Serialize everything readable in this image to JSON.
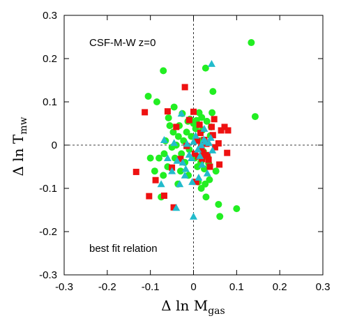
{
  "chart_data": {
    "type": "scatter",
    "title": "",
    "xlabel": {
      "main": "Δ ln M",
      "sub": "gas"
    },
    "ylabel": {
      "main": "Δ ln T",
      "sub": "mw"
    },
    "xlim": [
      -0.3,
      0.3
    ],
    "ylim": [
      -0.3,
      0.3
    ],
    "xticks": [
      "-0.3",
      "-0.2",
      "-0.1",
      "0",
      "0.1",
      "0.2",
      "0.3"
    ],
    "yticks": [
      "-0.3",
      "-0.2",
      "-0.1",
      "0",
      "0.1",
      "0.2",
      "0.3"
    ],
    "annotations": {
      "top_left": "CSF-M-W   z=0",
      "bottom_left": "best fit relation"
    },
    "reference_lines": {
      "x": 0,
      "y": 0,
      "style": "dashed"
    },
    "grid": false,
    "series": [
      {
        "marker": "circle",
        "color": "#22ee22",
        "points": [
          [
            0.134,
            0.237
          ],
          [
            0.143,
            0.066
          ],
          [
            0.1,
            -0.147
          ],
          [
            0.061,
            -0.165
          ],
          [
            0.058,
            -0.137
          ],
          [
            0.045,
            0.124
          ],
          [
            0.043,
            0.075
          ],
          [
            0.041,
            0.042
          ],
          [
            0.039,
            0.022
          ],
          [
            0.037,
            -0.08
          ],
          [
            0.035,
            -0.042
          ],
          [
            0.033,
            -0.028
          ],
          [
            0.031,
            0.055
          ],
          [
            0.029,
            -0.12
          ],
          [
            0.027,
            -0.09
          ],
          [
            0.025,
            -0.055
          ],
          [
            0.023,
            -0.015
          ],
          [
            0.021,
            0.035
          ],
          [
            0.019,
            0.064
          ],
          [
            0.017,
            -0.04
          ],
          [
            0.015,
            0.01
          ],
          [
            0.013,
            0.075
          ],
          [
            0.011,
            -0.085
          ],
          [
            0.009,
            -0.05
          ],
          [
            0.007,
            0.057
          ],
          [
            0.005,
            0.038
          ],
          [
            0.003,
            -0.03
          ],
          [
            0.0,
            0.05
          ],
          [
            -0.005,
            0.02
          ],
          [
            -0.01,
            -0.01
          ],
          [
            -0.013,
            0.055
          ],
          [
            -0.016,
            0.03
          ],
          [
            -0.02,
            -0.04
          ],
          [
            -0.023,
            0.01
          ],
          [
            -0.026,
            0.073
          ],
          [
            -0.028,
            -0.02
          ],
          [
            -0.03,
            -0.06
          ],
          [
            -0.033,
            0.045
          ],
          [
            -0.036,
            -0.09
          ],
          [
            -0.04,
            0.0
          ],
          [
            -0.043,
            -0.03
          ],
          [
            -0.047,
            0.03
          ],
          [
            -0.05,
            -0.005
          ],
          [
            -0.055,
            0.045
          ],
          [
            -0.06,
            -0.05
          ],
          [
            -0.065,
            0.01
          ],
          [
            -0.07,
            -0.07
          ],
          [
            -0.075,
            -0.12
          ],
          [
            -0.08,
            -0.03
          ],
          [
            -0.085,
            0.1
          ],
          [
            -0.09,
            -0.06
          ],
          [
            -0.1,
            -0.03
          ],
          [
            -0.105,
            0.113
          ],
          [
            -0.068,
            -0.02
          ],
          [
            -0.035,
            0.02
          ],
          [
            -0.012,
            -0.07
          ],
          [
            0.018,
            -0.1
          ],
          [
            0.052,
            -0.06
          ],
          [
            -0.07,
            0.172
          ],
          [
            -0.058,
            0.063
          ],
          [
            -0.045,
            0.088
          ],
          [
            0.028,
            0.178
          ],
          [
            -0.008,
            0.06
          ]
        ]
      },
      {
        "marker": "square",
        "color": "#ee1111",
        "points": [
          [
            -0.133,
            -0.062
          ],
          [
            -0.113,
            0.076
          ],
          [
            -0.103,
            -0.118
          ],
          [
            -0.088,
            -0.081
          ],
          [
            -0.068,
            -0.117
          ],
          [
            -0.06,
            0.078
          ],
          [
            -0.05,
            -0.052
          ],
          [
            -0.046,
            -0.144
          ],
          [
            -0.04,
            0.042
          ],
          [
            -0.03,
            -0.032
          ],
          [
            -0.02,
            0.134
          ],
          [
            -0.016,
            -0.002
          ],
          [
            -0.01,
            0.058
          ],
          [
            0.0,
            0.077
          ],
          [
            0.003,
            -0.02
          ],
          [
            0.006,
            -0.085
          ],
          [
            0.008,
            0.01
          ],
          [
            0.011,
            -0.026
          ],
          [
            0.014,
            0.047
          ],
          [
            0.016,
            0.028
          ],
          [
            0.018,
            -0.005
          ],
          [
            0.02,
            -0.032
          ],
          [
            0.022,
            -0.018
          ],
          [
            0.025,
            0.012
          ],
          [
            0.03,
            0.003
          ],
          [
            0.032,
            -0.023
          ],
          [
            0.035,
            -0.034
          ],
          [
            0.038,
            -0.05
          ],
          [
            0.042,
            0.042
          ],
          [
            0.048,
            0.06
          ],
          [
            0.05,
            -0.005
          ],
          [
            0.058,
            0.004
          ],
          [
            0.064,
            0.034
          ],
          [
            0.072,
            0.042
          ],
          [
            0.078,
            -0.018
          ],
          [
            0.08,
            0.034
          ],
          [
            0.06,
            -0.045
          ],
          [
            0.045,
            0.023
          ]
        ]
      },
      {
        "marker": "triangle",
        "color": "#22bbcc",
        "points": [
          [
            0.042,
            0.188
          ],
          [
            0.0,
            -0.165
          ],
          [
            -0.04,
            -0.145
          ],
          [
            -0.075,
            -0.09
          ],
          [
            -0.068,
            0.012
          ],
          [
            -0.06,
            -0.03
          ],
          [
            -0.05,
            -0.06
          ],
          [
            -0.045,
            0.005
          ],
          [
            -0.038,
            -0.036
          ],
          [
            -0.032,
            -0.09
          ],
          [
            -0.028,
            0.073
          ],
          [
            -0.025,
            -0.04
          ],
          [
            -0.02,
            -0.07
          ],
          [
            -0.018,
            -0.055
          ],
          [
            -0.015,
            0.003
          ],
          [
            -0.01,
            -0.022
          ],
          [
            -0.005,
            -0.03
          ],
          [
            0.0,
            0.008
          ],
          [
            0.005,
            0.022
          ],
          [
            0.01,
            -0.01
          ],
          [
            0.015,
            -0.025
          ],
          [
            0.018,
            0.0
          ],
          [
            0.02,
            -0.045
          ],
          [
            0.024,
            0.013
          ],
          [
            0.028,
            0.008
          ],
          [
            0.032,
            -0.065
          ],
          [
            0.036,
            0.005
          ],
          [
            0.04,
            0.017
          ],
          [
            0.044,
            -0.012
          ],
          [
            0.012,
            -0.075
          ],
          [
            -0.003,
            -0.085
          ],
          [
            0.025,
            0.038
          ]
        ]
      }
    ]
  }
}
